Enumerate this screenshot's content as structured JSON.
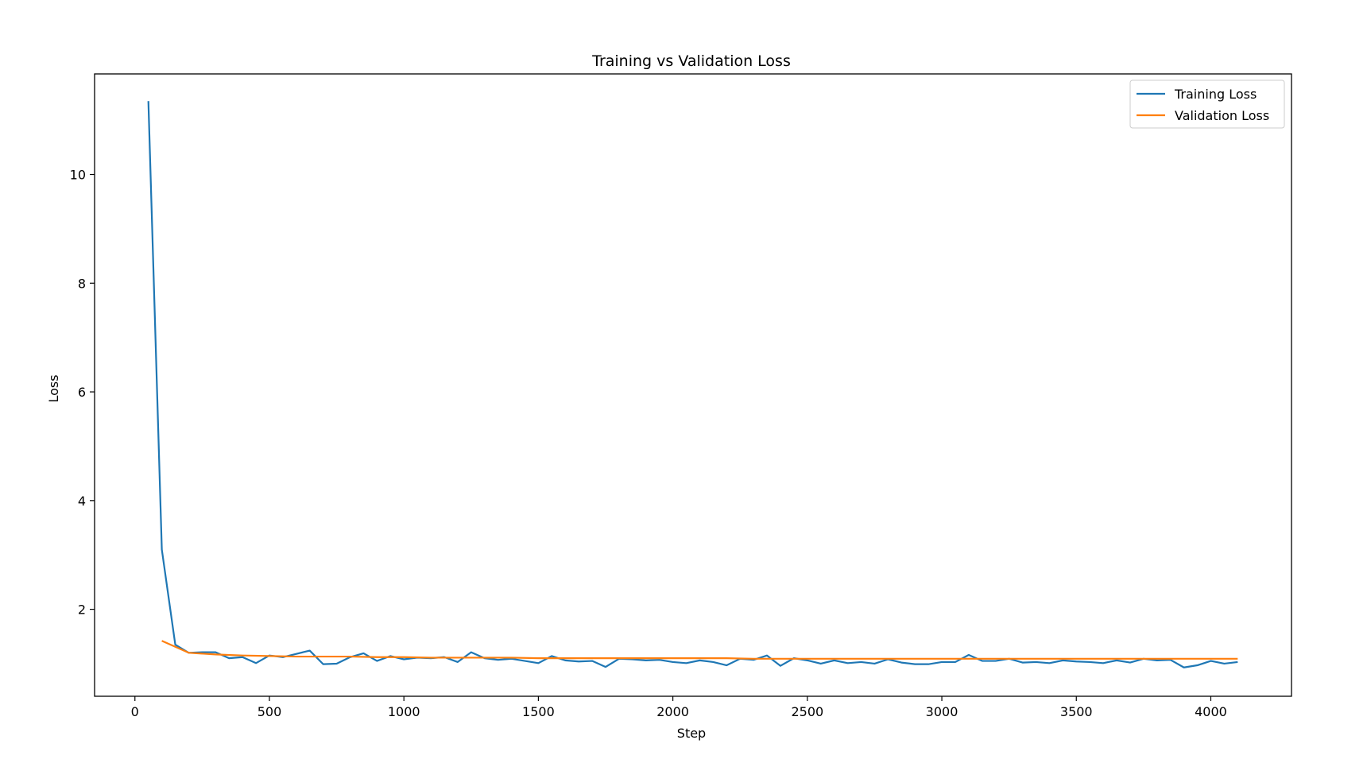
{
  "chart_data": {
    "type": "line",
    "title": "Training vs Validation Loss",
    "xlabel": "Step",
    "ylabel": "Loss",
    "xlim": [
      -150,
      4300
    ],
    "ylim": [
      0.4,
      11.85
    ],
    "xticks": [
      0,
      500,
      1000,
      1500,
      2000,
      2500,
      3000,
      3500,
      4000
    ],
    "yticks": [
      2,
      4,
      6,
      8,
      10
    ],
    "grid": false,
    "legend_position": "top-right",
    "series": [
      {
        "name": "Training Loss",
        "color": "#1f77b4",
        "x": [
          50,
          100,
          150,
          200,
          250,
          300,
          350,
          400,
          450,
          500,
          550,
          600,
          650,
          700,
          750,
          800,
          850,
          900,
          950,
          1000,
          1050,
          1100,
          1150,
          1200,
          1250,
          1300,
          1350,
          1400,
          1450,
          1500,
          1550,
          1600,
          1650,
          1700,
          1750,
          1800,
          1850,
          1900,
          1950,
          2000,
          2050,
          2100,
          2150,
          2200,
          2250,
          2300,
          2350,
          2400,
          2450,
          2500,
          2550,
          2600,
          2650,
          2700,
          2750,
          2800,
          2850,
          2900,
          2950,
          3000,
          3050,
          3100,
          3150,
          3200,
          3250,
          3300,
          3350,
          3400,
          3450,
          3500,
          3550,
          3600,
          3650,
          3700,
          3750,
          3800,
          3850,
          3900,
          3950,
          4000,
          4050,
          4100
        ],
        "y": [
          11.35,
          3.1,
          1.35,
          1.2,
          1.21,
          1.21,
          1.1,
          1.12,
          1.01,
          1.15,
          1.12,
          1.18,
          1.24,
          0.99,
          1.0,
          1.12,
          1.19,
          1.05,
          1.14,
          1.08,
          1.11,
          1.1,
          1.12,
          1.03,
          1.21,
          1.1,
          1.07,
          1.09,
          1.05,
          1.01,
          1.14,
          1.06,
          1.04,
          1.05,
          0.94,
          1.09,
          1.08,
          1.06,
          1.07,
          1.03,
          1.01,
          1.06,
          1.03,
          0.97,
          1.09,
          1.07,
          1.15,
          0.96,
          1.1,
          1.06,
          1.0,
          1.06,
          1.01,
          1.03,
          1.0,
          1.08,
          1.02,
          0.99,
          0.99,
          1.03,
          1.03,
          1.16,
          1.05,
          1.05,
          1.09,
          1.02,
          1.03,
          1.01,
          1.06,
          1.04,
          1.03,
          1.01,
          1.06,
          1.02,
          1.09,
          1.06,
          1.07,
          0.93,
          0.97,
          1.05,
          1.0,
          1.03
        ]
      },
      {
        "name": "Validation Loss",
        "color": "#ff7f0e",
        "x": [
          100,
          200,
          300,
          400,
          500,
          600,
          700,
          800,
          900,
          1000,
          1100,
          1200,
          1300,
          1400,
          1500,
          1600,
          1700,
          1800,
          1900,
          2000,
          2100,
          2200,
          2300,
          2400,
          2500,
          2600,
          2700,
          2800,
          2900,
          3000,
          3100,
          3200,
          3300,
          3400,
          3500,
          3600,
          3700,
          3800,
          3900,
          4000,
          4100
        ],
        "y": [
          1.42,
          1.2,
          1.17,
          1.15,
          1.14,
          1.13,
          1.13,
          1.13,
          1.12,
          1.12,
          1.11,
          1.11,
          1.11,
          1.11,
          1.1,
          1.1,
          1.1,
          1.1,
          1.1,
          1.1,
          1.1,
          1.1,
          1.09,
          1.09,
          1.09,
          1.09,
          1.09,
          1.09,
          1.09,
          1.09,
          1.09,
          1.09,
          1.09,
          1.09,
          1.09,
          1.09,
          1.09,
          1.09,
          1.09,
          1.09,
          1.09
        ]
      }
    ]
  }
}
